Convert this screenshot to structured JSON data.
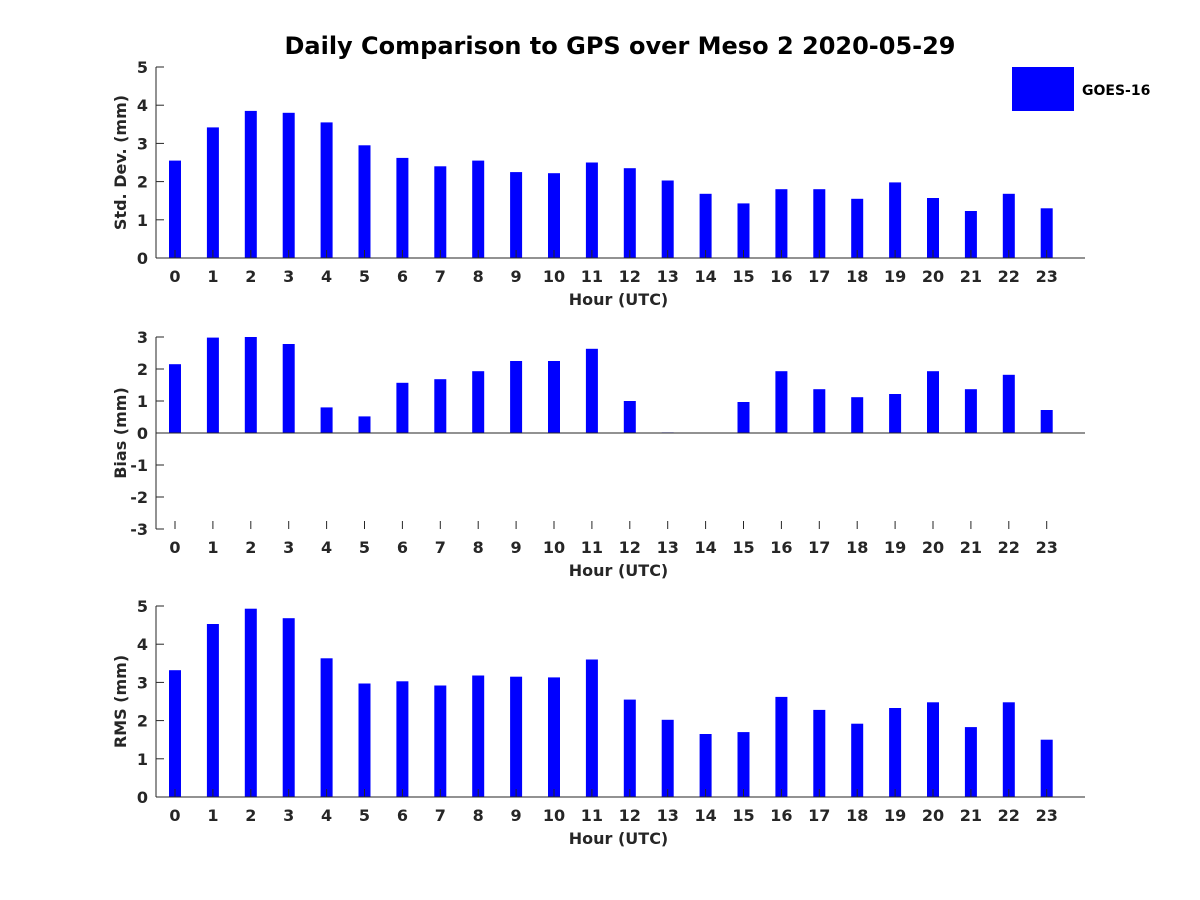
{
  "title": "Daily Comparison to GPS over Meso 2 2020-05-29",
  "legend": {
    "label": "GOES-16",
    "color": "#0000ff",
    "placement": "top-right"
  },
  "chart_data": [
    {
      "type": "bar",
      "xlabel": "Hour (UTC)",
      "ylabel": "Std. Dev. (mm)",
      "ylim": [
        0,
        5
      ],
      "yticks": [
        "0",
        "1",
        "2",
        "3",
        "4",
        "5"
      ],
      "categories": [
        "0",
        "1",
        "2",
        "3",
        "4",
        "5",
        "6",
        "7",
        "8",
        "9",
        "10",
        "11",
        "12",
        "13",
        "14",
        "15",
        "16",
        "17",
        "18",
        "19",
        "20",
        "21",
        "22",
        "23"
      ],
      "series": [
        {
          "name": "GOES-16",
          "values": [
            2.55,
            3.42,
            3.85,
            3.8,
            3.55,
            2.95,
            2.62,
            2.4,
            2.55,
            2.25,
            2.22,
            2.5,
            2.35,
            2.03,
            1.68,
            1.43,
            1.8,
            1.8,
            1.55,
            1.98,
            1.57,
            1.23,
            1.68,
            1.3
          ]
        }
      ]
    },
    {
      "type": "bar",
      "xlabel": "Hour (UTC)",
      "ylabel": "Bias (mm)",
      "ylim": [
        -3,
        3
      ],
      "yticks": [
        "-3",
        "-2",
        "-1",
        "0",
        "1",
        "2",
        "3"
      ],
      "categories": [
        "0",
        "1",
        "2",
        "3",
        "4",
        "5",
        "6",
        "7",
        "8",
        "9",
        "10",
        "11",
        "12",
        "13",
        "14",
        "15",
        "16",
        "17",
        "18",
        "19",
        "20",
        "21",
        "22",
        "23"
      ],
      "series": [
        {
          "name": "GOES-16",
          "values": [
            2.15,
            2.98,
            3.0,
            2.78,
            0.8,
            0.52,
            1.57,
            1.68,
            1.93,
            2.25,
            2.25,
            2.63,
            1.0,
            0.02,
            0.0,
            0.97,
            1.93,
            1.37,
            1.12,
            1.22,
            1.93,
            1.37,
            1.82,
            0.72
          ]
        }
      ]
    },
    {
      "type": "bar",
      "xlabel": "Hour (UTC)",
      "ylabel": "RMS (mm)",
      "ylim": [
        0,
        5
      ],
      "yticks": [
        "0",
        "1",
        "2",
        "3",
        "4",
        "5"
      ],
      "categories": [
        "0",
        "1",
        "2",
        "3",
        "4",
        "5",
        "6",
        "7",
        "8",
        "9",
        "10",
        "11",
        "12",
        "13",
        "14",
        "15",
        "16",
        "17",
        "18",
        "19",
        "20",
        "21",
        "22",
        "23"
      ],
      "series": [
        {
          "name": "GOES-16",
          "values": [
            3.32,
            4.53,
            4.93,
            4.68,
            3.63,
            2.97,
            3.03,
            2.92,
            3.18,
            3.15,
            3.13,
            3.6,
            2.55,
            2.02,
            1.65,
            1.7,
            2.62,
            2.28,
            1.92,
            2.33,
            2.48,
            1.83,
            2.48,
            1.5
          ]
        }
      ]
    }
  ]
}
